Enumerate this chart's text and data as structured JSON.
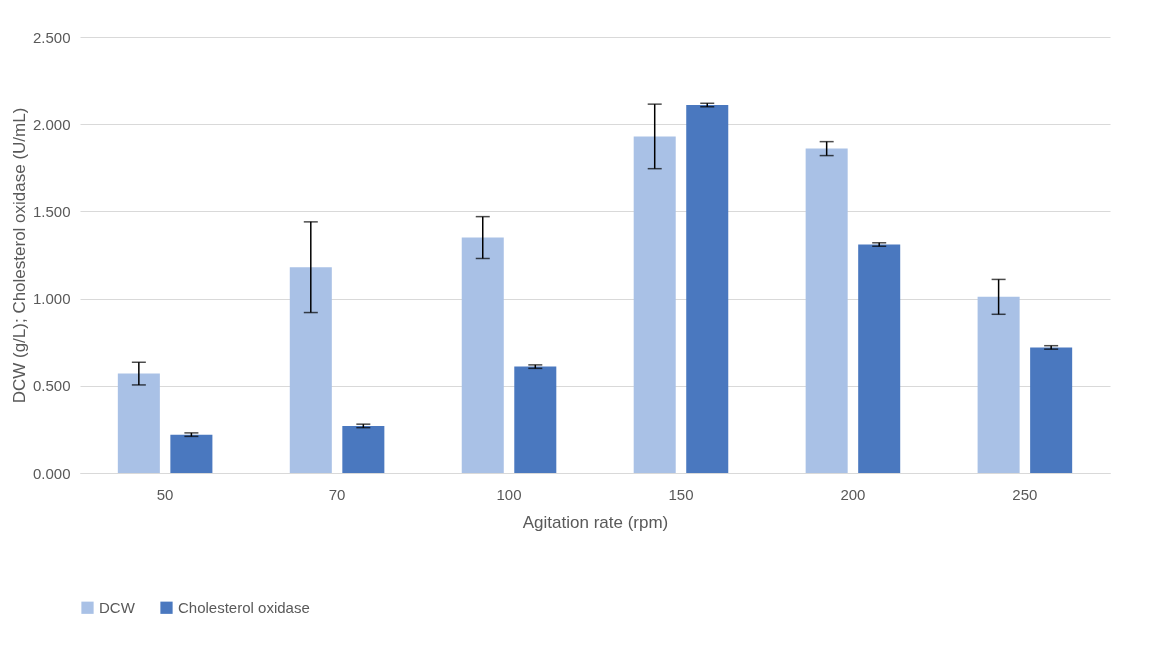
{
  "chart_data": {
    "type": "bar",
    "xlabel": "Agitation rate (rpm)",
    "ylabel": "DCW (g/L); Cholesterol oxidase (U/mL)",
    "categories": [
      "50",
      "70",
      "100",
      "150",
      "200",
      "250"
    ],
    "series": [
      {
        "name": "DCW",
        "color": "#a9c1e6",
        "values": [
          0.57,
          1.18,
          1.35,
          1.93,
          1.86,
          1.01
        ],
        "errors": [
          0.065,
          0.26,
          0.12,
          0.185,
          0.04,
          0.1
        ]
      },
      {
        "name": "Cholesterol oxidase",
        "color": "#4a78bf",
        "values": [
          0.22,
          0.27,
          0.61,
          2.11,
          1.31,
          0.72
        ],
        "errors": [
          0.01,
          0.01,
          0.01,
          0.01,
          0.01,
          0.01
        ]
      }
    ],
    "ylim": [
      0,
      2.5
    ],
    "yticks": [
      {
        "value": 0,
        "label": "0.000"
      },
      {
        "value": 0.5,
        "label": "0.500"
      },
      {
        "value": 1,
        "label": "1.000"
      },
      {
        "value": 1.5,
        "label": "1.500"
      },
      {
        "value": 2,
        "label": "2.000"
      },
      {
        "value": 2.5,
        "label": "2.500"
      }
    ],
    "grid": "y",
    "legend": "bottom"
  }
}
